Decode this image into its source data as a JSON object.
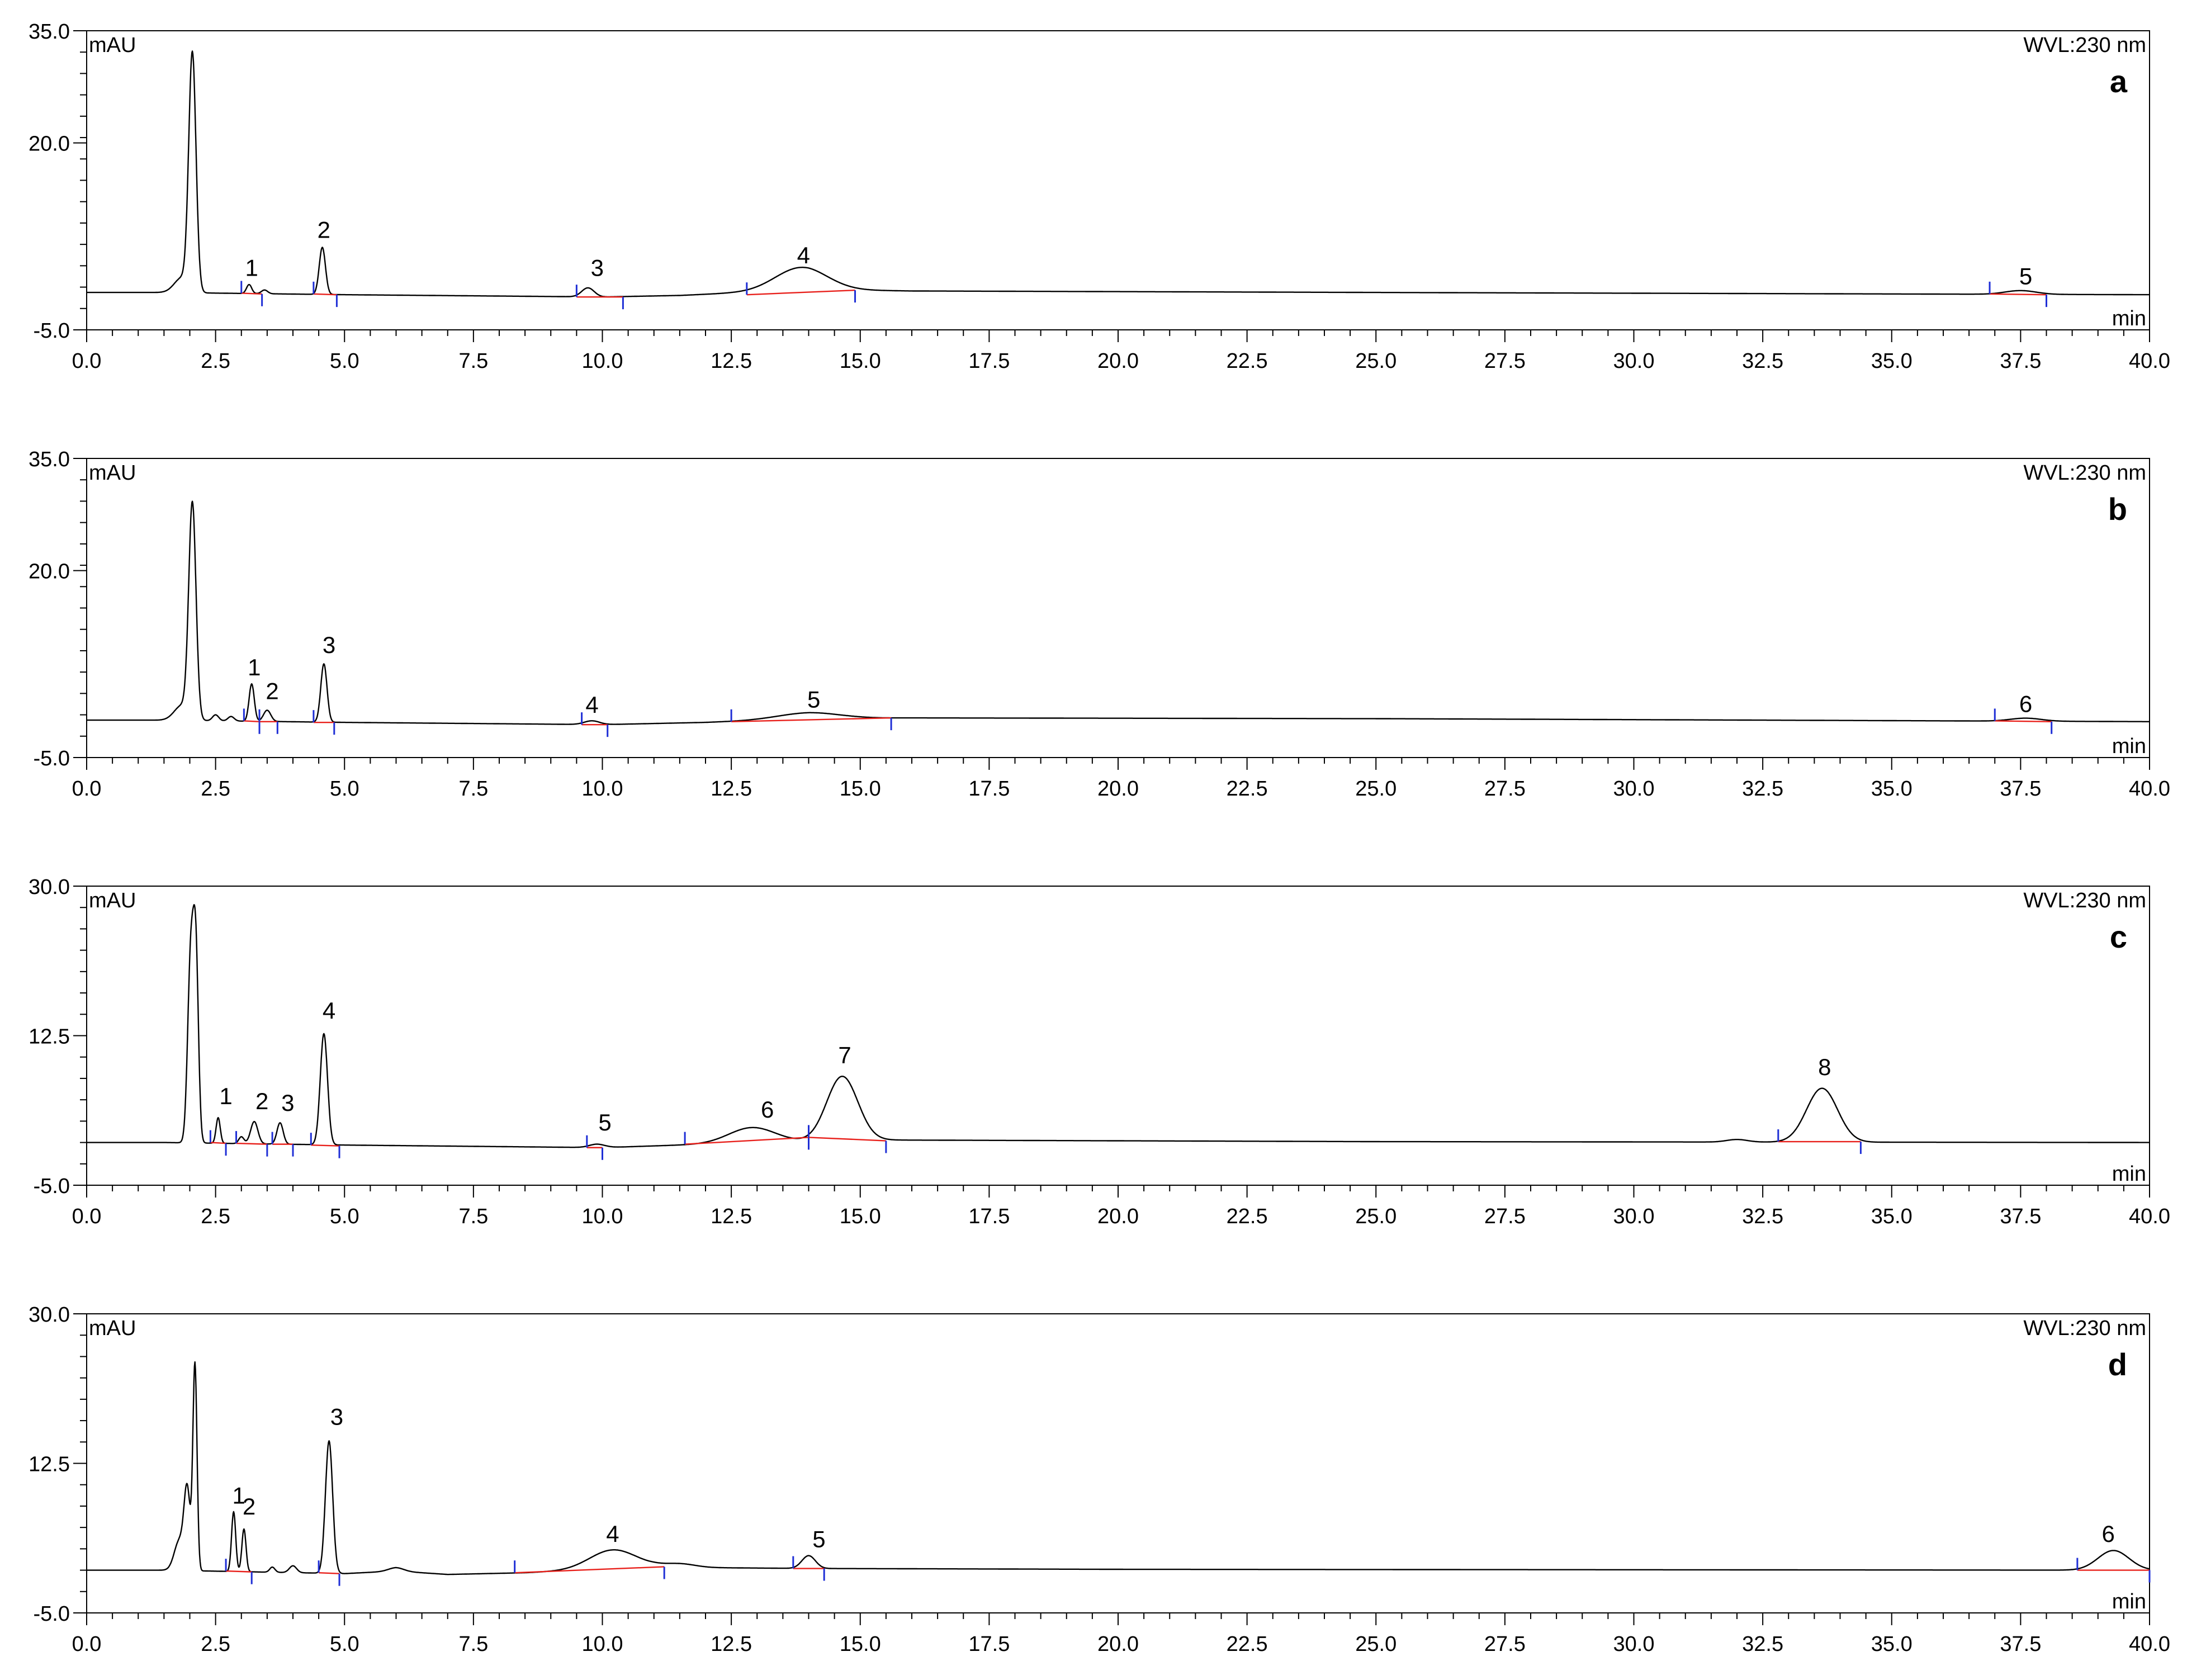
{
  "chart_data": [
    {
      "type": "line",
      "panel": "a",
      "y_unit": "mAU",
      "x_unit": "min",
      "wavelength": "WVL:230 nm",
      "ylim": [
        -5.0,
        35.0
      ],
      "y_ticks": [
        -5.0,
        20.0,
        35.0
      ],
      "y_tick_labels": [
        "-5.0",
        "20.0",
        "35.0"
      ],
      "xlim": [
        0.0,
        40.0
      ],
      "x_tick_labels": [
        "0.0",
        "2.5",
        "5.0",
        "7.5",
        "10.0",
        "12.5",
        "15.0",
        "17.5",
        "20.0",
        "22.5",
        "25.0",
        "27.5",
        "30.0",
        "32.5",
        "35.0",
        "37.5",
        "40.0"
      ],
      "baseline": [
        [
          0,
          0.0
        ],
        [
          1.5,
          0.0
        ],
        [
          5,
          -0.3
        ],
        [
          10,
          -0.6
        ],
        [
          11.5,
          -0.4
        ],
        [
          14,
          0.4
        ],
        [
          16,
          0.2
        ],
        [
          25,
          0.0
        ],
        [
          40,
          -0.3
        ]
      ],
      "peaks": [
        {
          "t": 2.05,
          "h": 31.5,
          "w": 0.07
        },
        {
          "t": 1.85,
          "h": 2.0,
          "w": 0.15
        },
        {
          "t": 3.15,
          "h": 1.2,
          "w": 0.05
        },
        {
          "t": 3.45,
          "h": 0.5,
          "w": 0.06
        },
        {
          "t": 4.57,
          "h": 6.3,
          "w": 0.06
        },
        {
          "t": 9.72,
          "h": 1.2,
          "w": 0.12
        },
        {
          "t": 13.85,
          "h": 3.0,
          "w": 0.5
        },
        {
          "t": 37.5,
          "h": 0.5,
          "w": 0.3
        }
      ],
      "labels": [
        {
          "text": "1",
          "t": 3.2,
          "y": 2.2
        },
        {
          "text": "2",
          "t": 4.6,
          "y": 7.3
        },
        {
          "text": "3",
          "t": 9.9,
          "y": 2.2
        },
        {
          "text": "4",
          "t": 13.9,
          "y": 3.9
        },
        {
          "text": "5",
          "t": 37.6,
          "y": 1.1
        }
      ],
      "integration_baselines": [
        {
          "from": [
            3.0,
            -0.1
          ],
          "to": [
            3.4,
            -0.2
          ]
        },
        {
          "from": [
            4.4,
            -0.2
          ],
          "to": [
            4.85,
            -0.3
          ]
        },
        {
          "from": [
            9.5,
            -0.6
          ],
          "to": [
            10.4,
            -0.6
          ]
        },
        {
          "from": [
            12.8,
            -0.3
          ],
          "to": [
            14.9,
            0.3
          ]
        },
        {
          "from": [
            36.9,
            -0.2
          ],
          "to": [
            38.0,
            -0.3
          ]
        }
      ]
    },
    {
      "type": "line",
      "panel": "b",
      "y_unit": "mAU",
      "x_unit": "min",
      "wavelength": "WVL:230 nm",
      "ylim": [
        -5.0,
        35.0
      ],
      "y_ticks": [
        -5.0,
        20.0,
        35.0
      ],
      "y_tick_labels": [
        "-5.0",
        "20.0",
        "35.0"
      ],
      "xlim": [
        0.0,
        40.0
      ],
      "x_tick_labels": [
        "0.0",
        "2.5",
        "5.0",
        "7.5",
        "10.0",
        "12.5",
        "15.0",
        "17.5",
        "20.0",
        "22.5",
        "25.0",
        "27.5",
        "30.0",
        "32.5",
        "35.0",
        "37.5",
        "40.0"
      ],
      "baseline": [
        [
          0,
          0.0
        ],
        [
          1.5,
          0.0
        ],
        [
          5,
          -0.3
        ],
        [
          10,
          -0.6
        ],
        [
          12,
          -0.3
        ],
        [
          14,
          0.2
        ],
        [
          16,
          0.3
        ],
        [
          25,
          0.2
        ],
        [
          40,
          -0.2
        ]
      ],
      "peaks": [
        {
          "t": 2.05,
          "h": 28.5,
          "w": 0.07
        },
        {
          "t": 1.85,
          "h": 2.0,
          "w": 0.15
        },
        {
          "t": 2.5,
          "h": 0.8,
          "w": 0.06
        },
        {
          "t": 2.8,
          "h": 0.6,
          "w": 0.06
        },
        {
          "t": 3.2,
          "h": 5.0,
          "w": 0.05
        },
        {
          "t": 3.5,
          "h": 1.5,
          "w": 0.07
        },
        {
          "t": 4.6,
          "h": 7.8,
          "w": 0.06
        },
        {
          "t": 9.8,
          "h": 0.5,
          "w": 0.15
        },
        {
          "t": 14.0,
          "h": 0.8,
          "w": 0.6
        },
        {
          "t": 37.6,
          "h": 0.4,
          "w": 0.3
        }
      ],
      "labels": [
        {
          "text": "1",
          "t": 3.25,
          "y": 6.0
        },
        {
          "text": "2",
          "t": 3.6,
          "y": 2.8
        },
        {
          "text": "3",
          "t": 4.7,
          "y": 9.0
        },
        {
          "text": "4",
          "t": 9.8,
          "y": 1.0
        },
        {
          "text": "5",
          "t": 14.1,
          "y": 1.7
        },
        {
          "text": "6",
          "t": 37.6,
          "y": 1.1
        }
      ],
      "integration_baselines": [
        {
          "from": [
            3.05,
            -0.1
          ],
          "to": [
            3.35,
            -0.2
          ]
        },
        {
          "from": [
            3.35,
            -0.2
          ],
          "to": [
            3.7,
            -0.2
          ]
        },
        {
          "from": [
            4.4,
            -0.3
          ],
          "to": [
            4.8,
            -0.3
          ]
        },
        {
          "from": [
            9.6,
            -0.6
          ],
          "to": [
            10.1,
            -0.6
          ]
        },
        {
          "from": [
            12.5,
            -0.2
          ],
          "to": [
            15.6,
            0.3
          ]
        },
        {
          "from": [
            37.0,
            -0.1
          ],
          "to": [
            38.1,
            -0.2
          ]
        }
      ]
    },
    {
      "type": "line",
      "panel": "c",
      "y_unit": "mAU",
      "x_unit": "min",
      "wavelength": "WVL:230 nm",
      "ylim": [
        -5.0,
        30.0
      ],
      "y_ticks": [
        -5.0,
        12.5,
        30.0
      ],
      "y_tick_labels": [
        "-5.0",
        "12.5",
        "30.0"
      ],
      "xlim": [
        0.0,
        40.0
      ],
      "x_tick_labels": [
        "0.0",
        "2.5",
        "5.0",
        "7.5",
        "10.0",
        "12.5",
        "15.0",
        "17.5",
        "20.0",
        "22.5",
        "25.0",
        "27.5",
        "30.0",
        "32.5",
        "35.0",
        "37.5",
        "40.0"
      ],
      "baseline": [
        [
          0,
          0.0
        ],
        [
          1.5,
          0.0
        ],
        [
          5,
          -0.3
        ],
        [
          10,
          -0.6
        ],
        [
          12,
          -0.2
        ],
        [
          15,
          0.3
        ],
        [
          25,
          0.1
        ],
        [
          40,
          0.0
        ]
      ],
      "peaks": [
        {
          "t": 2.02,
          "h": 22.0,
          "w": 0.06
        },
        {
          "t": 2.12,
          "h": 20.0,
          "w": 0.05
        },
        {
          "t": 2.55,
          "h": 3.0,
          "w": 0.04
        },
        {
          "t": 3.0,
          "h": 0.8,
          "w": 0.05
        },
        {
          "t": 3.25,
          "h": 2.6,
          "w": 0.07
        },
        {
          "t": 3.75,
          "h": 2.5,
          "w": 0.06
        },
        {
          "t": 4.6,
          "h": 13.0,
          "w": 0.07
        },
        {
          "t": 9.9,
          "h": 0.4,
          "w": 0.15
        },
        {
          "t": 12.9,
          "h": 1.8,
          "w": 0.45
        },
        {
          "t": 14.65,
          "h": 7.5,
          "w": 0.3
        },
        {
          "t": 32.0,
          "h": 0.3,
          "w": 0.2
        },
        {
          "t": 33.65,
          "h": 6.3,
          "w": 0.3
        }
      ],
      "labels": [
        {
          "text": "1",
          "t": 2.7,
          "y": 4.5
        },
        {
          "text": "2",
          "t": 3.4,
          "y": 3.9
        },
        {
          "text": "3",
          "t": 3.9,
          "y": 3.7
        },
        {
          "text": "4",
          "t": 4.7,
          "y": 14.5
        },
        {
          "text": "5",
          "t": 10.05,
          "y": 1.4
        },
        {
          "text": "6",
          "t": 13.2,
          "y": 2.9
        },
        {
          "text": "7",
          "t": 14.7,
          "y": 9.3
        },
        {
          "text": "8",
          "t": 33.7,
          "y": 7.9
        }
      ],
      "integration_baselines": [
        {
          "from": [
            2.4,
            0.0
          ],
          "to": [
            2.7,
            -0.1
          ]
        },
        {
          "from": [
            2.9,
            -0.1
          ],
          "to": [
            3.5,
            -0.2
          ]
        },
        {
          "from": [
            3.6,
            -0.2
          ],
          "to": [
            4.0,
            -0.2
          ]
        },
        {
          "from": [
            4.35,
            -0.3
          ],
          "to": [
            4.9,
            -0.4
          ]
        },
        {
          "from": [
            9.7,
            -0.6
          ],
          "to": [
            10.0,
            -0.6
          ]
        },
        {
          "from": [
            11.6,
            -0.2
          ],
          "to": [
            14.0,
            0.6
          ]
        },
        {
          "from": [
            14.0,
            0.6
          ],
          "to": [
            15.5,
            0.2
          ]
        },
        {
          "from": [
            32.8,
            0.1
          ],
          "to": [
            34.4,
            0.1
          ]
        }
      ]
    },
    {
      "type": "line",
      "panel": "d",
      "y_unit": "mAU",
      "x_unit": "min",
      "wavelength": "WVL:230 nm",
      "ylim": [
        -5.0,
        30.0
      ],
      "y_ticks": [
        -5.0,
        12.5,
        30.0
      ],
      "y_tick_labels": [
        "-5.0",
        "12.5",
        "30.0"
      ],
      "xlim": [
        0.0,
        40.0
      ],
      "x_tick_labels": [
        "0.0",
        "2.5",
        "5.0",
        "7.5",
        "10.0",
        "12.5",
        "15.0",
        "17.5",
        "20.0",
        "22.5",
        "25.0",
        "27.5",
        "30.0",
        "32.5",
        "35.0",
        "37.5",
        "40.0"
      ],
      "baseline": [
        [
          0,
          0.0
        ],
        [
          1.5,
          0.0
        ],
        [
          5,
          -0.4
        ],
        [
          6,
          -0.1
        ],
        [
          7,
          -0.5
        ],
        [
          8.5,
          -0.3
        ],
        [
          11,
          0.4
        ],
        [
          12,
          0.3
        ],
        [
          14,
          0.2
        ],
        [
          20,
          0.1
        ],
        [
          40,
          0.0
        ]
      ],
      "peaks": [
        {
          "t": 1.95,
          "h": 9.0,
          "w": 0.06
        },
        {
          "t": 2.1,
          "h": 24.0,
          "w": 0.04
        },
        {
          "t": 1.8,
          "h": 3.5,
          "w": 0.1
        },
        {
          "t": 2.85,
          "h": 7.0,
          "w": 0.04
        },
        {
          "t": 3.05,
          "h": 5.0,
          "w": 0.04
        },
        {
          "t": 3.6,
          "h": 0.6,
          "w": 0.05
        },
        {
          "t": 4.0,
          "h": 0.8,
          "w": 0.07
        },
        {
          "t": 4.7,
          "h": 15.5,
          "w": 0.07
        },
        {
          "t": 6.0,
          "h": 0.4,
          "w": 0.15
        },
        {
          "t": 10.2,
          "h": 2.2,
          "w": 0.45
        },
        {
          "t": 11.5,
          "h": 0.4,
          "w": 0.3
        },
        {
          "t": 14.0,
          "h": 1.5,
          "w": 0.13
        },
        {
          "t": 39.3,
          "h": 2.3,
          "w": 0.3
        }
      ],
      "labels": [
        {
          "text": "1",
          "t": 2.95,
          "y": 7.8
        },
        {
          "text": "2",
          "t": 3.15,
          "y": 6.5
        },
        {
          "text": "3",
          "t": 4.85,
          "y": 17.0
        },
        {
          "text": "4",
          "t": 10.2,
          "y": 3.3
        },
        {
          "text": "5",
          "t": 14.2,
          "y": 2.7
        },
        {
          "text": "6",
          "t": 39.2,
          "y": 3.3
        }
      ],
      "integration_baselines": [
        {
          "from": [
            2.7,
            -0.1
          ],
          "to": [
            3.2,
            -0.2
          ]
        },
        {
          "from": [
            4.5,
            -0.3
          ],
          "to": [
            4.9,
            -0.4
          ]
        },
        {
          "from": [
            8.3,
            -0.3
          ],
          "to": [
            11.2,
            0.4
          ]
        },
        {
          "from": [
            13.7,
            0.2
          ],
          "to": [
            14.3,
            0.2
          ]
        },
        {
          "from": [
            38.6,
            0.0
          ],
          "to": [
            40.0,
            0.0
          ]
        }
      ]
    }
  ],
  "colors": {
    "trace": "#000000",
    "integration_baseline": "#e8201b",
    "peak_marker": "#1f2fd6",
    "axis": "#000000",
    "background": "#ffffff"
  }
}
